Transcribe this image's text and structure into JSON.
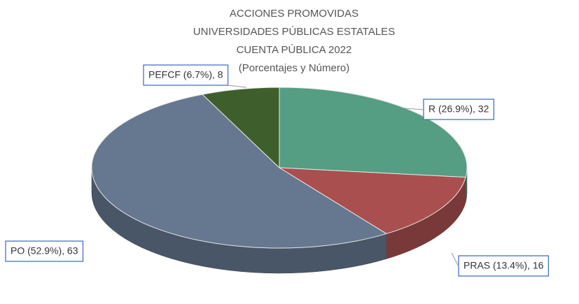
{
  "chart_data": {
    "type": "pie3d",
    "title": [
      "ACCIONES PROMOVIDAS",
      "UNIVERSIDADES PÚBLICAS ESTATALES",
      "CUENTA PÚBLICA 2022",
      "(Porcentajes y Número)"
    ],
    "categories": [
      "R",
      "PRAS",
      "PO",
      "PEFCF"
    ],
    "values": [
      32,
      16,
      63,
      8
    ],
    "value_labels": [
      "R (26.9%), 32",
      "PRAS (13.4%), 16",
      "PO (52.9%), 63",
      "PEFCF (6.7%), 8"
    ],
    "colors": [
      "#559e83",
      "#a94f4f",
      "#66788f",
      "#3e5f2b"
    ]
  }
}
